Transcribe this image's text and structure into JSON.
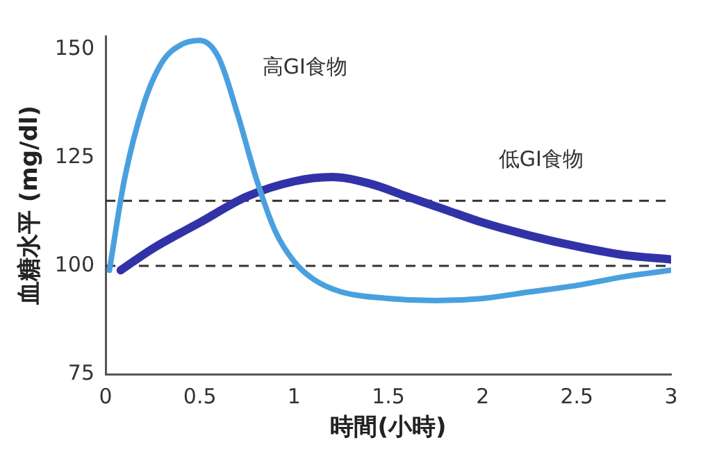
{
  "chart_data": {
    "type": "line",
    "xlabel": "時間(小時)",
    "ylabel": "血糖水平 (mg/dl)",
    "xlim": [
      0,
      3
    ],
    "xticks": [
      0,
      0.5,
      1,
      1.5,
      2,
      2.5,
      3
    ],
    "ylim": [
      75,
      153
    ],
    "yticks": [
      75,
      100,
      125,
      150
    ],
    "grid": false,
    "legend": false,
    "marker": "none",
    "line_style": "solid",
    "ref_lines": [
      {
        "axis": "y",
        "value": 100,
        "color": "#333333",
        "line_style": "dashed"
      },
      {
        "axis": "y",
        "value": 115,
        "color": "#333333",
        "line_style": "dashed"
      }
    ],
    "series": [
      {
        "name": "高GI食物",
        "color": "#4aa0df",
        "x": [
          0.02,
          0.1,
          0.2,
          0.3,
          0.4,
          0.5,
          0.6,
          0.7,
          0.8,
          0.9,
          1.0,
          1.1,
          1.25,
          1.5,
          1.75,
          2.0,
          2.25,
          2.5,
          2.75,
          3.0
        ],
        "values": [
          99,
          120,
          137,
          147,
          151,
          152,
          148,
          135,
          120,
          108,
          101,
          97,
          94,
          92.5,
          92,
          92.5,
          94,
          95.5,
          97.5,
          99
        ]
      },
      {
        "name": "低GI食物",
        "color": "#3232a8",
        "x": [
          0.08,
          0.25,
          0.5,
          0.75,
          1.0,
          1.2,
          1.4,
          1.6,
          1.8,
          2.0,
          2.25,
          2.5,
          2.75,
          3.0
        ],
        "values": [
          99,
          104,
          110,
          116,
          119.5,
          120.5,
          119,
          116,
          113,
          110,
          107,
          104.5,
          102.5,
          101.5
        ]
      }
    ]
  }
}
